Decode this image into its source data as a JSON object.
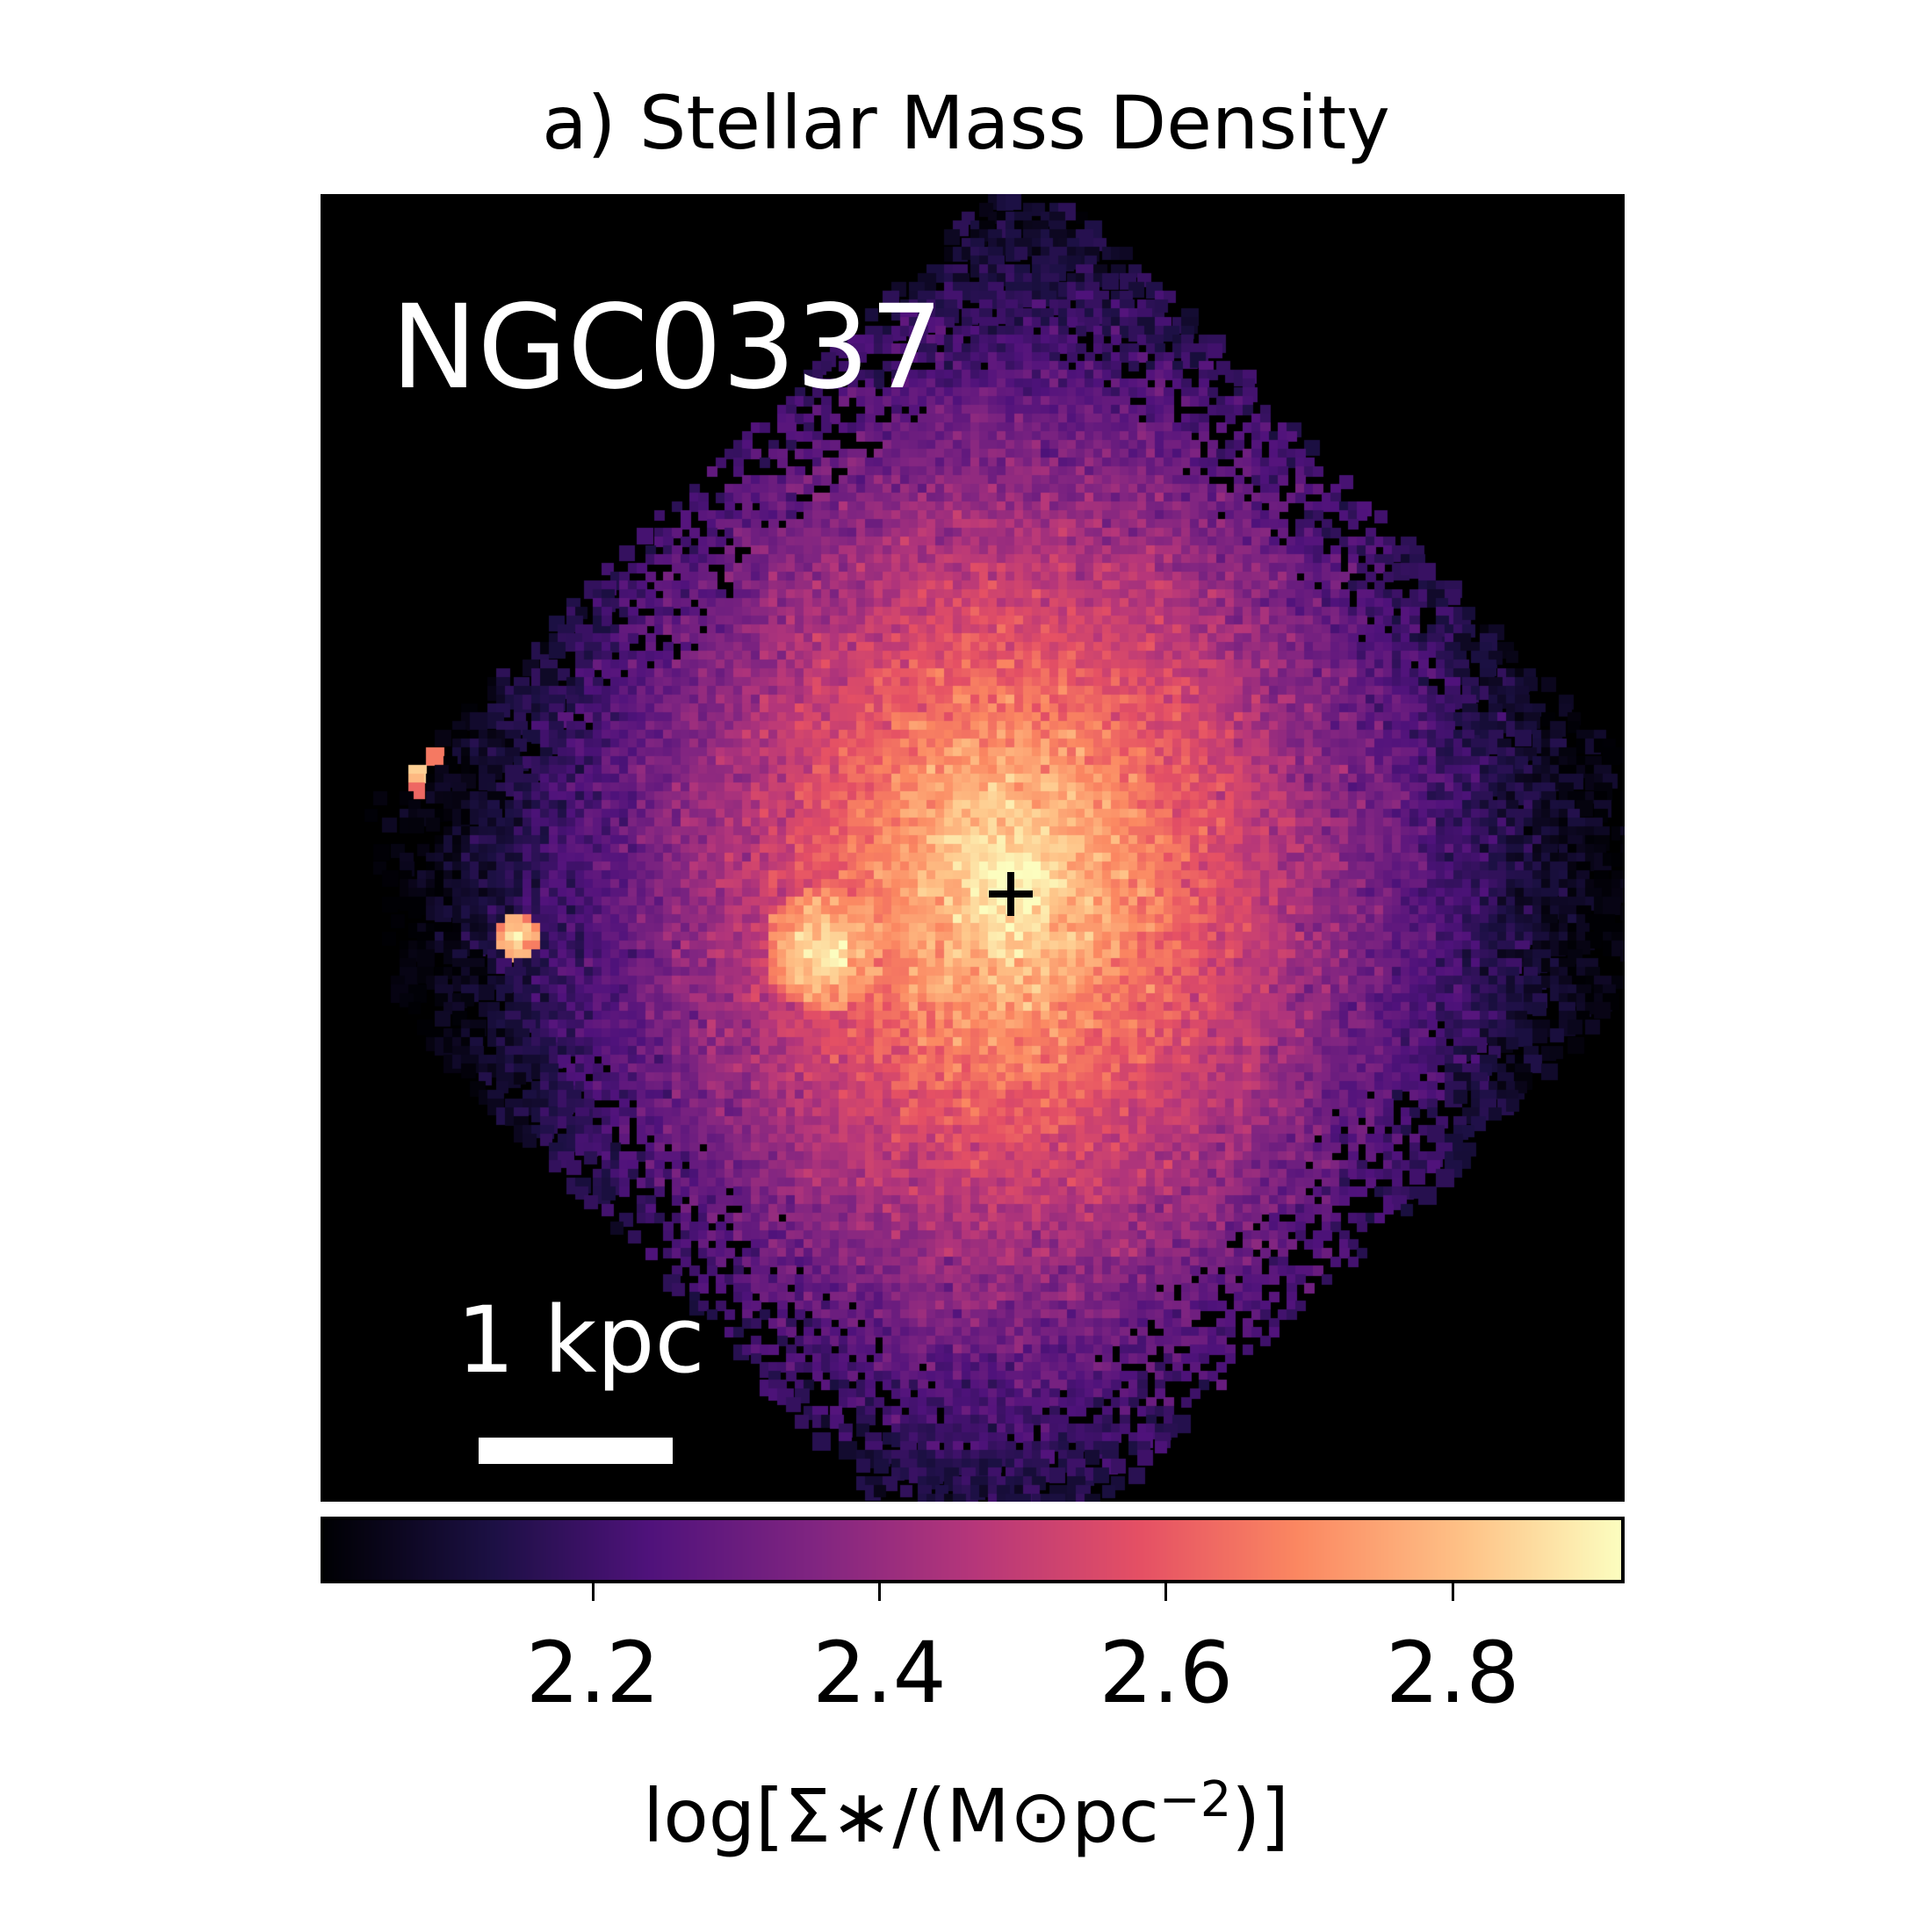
{
  "chart_data": {
    "type": "heatmap",
    "title": "a) Stellar Mass Density",
    "annotation": "NGC0337",
    "scale_bar_label": "1 kpc",
    "colormap": "magma",
    "colorbar": {
      "label": "log[Σ∗/(M⊙pc−2)]",
      "label_parts": {
        "main": "log[Σ∗/(M⊙pc",
        "exponent": "−2",
        "close": ")]"
      },
      "range": [
        2.01,
        2.92
      ],
      "ticks": [
        2.2,
        2.4,
        2.6,
        2.8
      ],
      "tick_labels": [
        "2.2",
        "2.4",
        "2.6",
        "2.8"
      ]
    },
    "colors": {
      "background": "#000000",
      "center_marker": "#000000",
      "annotation_text": "#ffffff"
    }
  }
}
